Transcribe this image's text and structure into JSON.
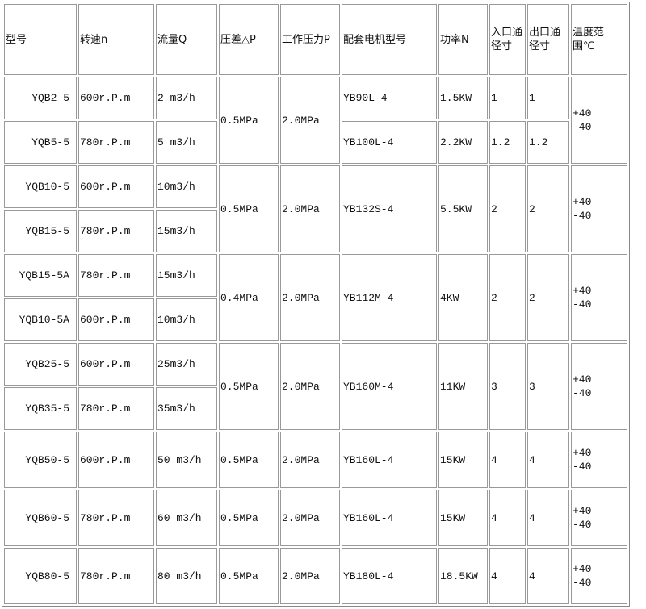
{
  "headers": [
    "型号",
    "转速n",
    "流量Q",
    "压差△P",
    "工作压力P",
    "配套电机型号",
    "功率N",
    "入口通径寸",
    "出口通径寸",
    "温度范围℃"
  ],
  "groups": [
    {
      "pressure_diff": "0.5MPa",
      "work_pressure": "2.0MPa",
      "temp": [
        "+40",
        "-40"
      ],
      "motor_shared": false,
      "rows": [
        {
          "model": "YQB2-5",
          "speed": "600r.P.m",
          "flow": "2 m3/h",
          "motor": "YB90L-4",
          "power": "1.5KW",
          "inlet": "1",
          "outlet": "1"
        },
        {
          "model": "YQB5-5",
          "speed": "780r.P.m",
          "flow": "5 m3/h",
          "motor": "YB100L-4",
          "power": "2.2KW",
          "inlet": "1.2",
          "outlet": "1.2"
        }
      ]
    },
    {
      "pressure_diff": "0.5MPa",
      "work_pressure": "2.0MPa",
      "temp": [
        "+40",
        "-40"
      ],
      "motor_shared": true,
      "motor": "YB132S-4",
      "power": "5.5KW",
      "inlet": "2",
      "outlet": "2",
      "rows": [
        {
          "model": "YQB10-5",
          "speed": "600r.P.m",
          "flow": "10m3/h"
        },
        {
          "model": "YQB15-5",
          "speed": "780r.P.m",
          "flow": "15m3/h"
        }
      ]
    },
    {
      "pressure_diff": "0.4MPa",
      "work_pressure": "2.0MPa",
      "temp": [
        "+40",
        "-40"
      ],
      "motor_shared": true,
      "motor": "YB112M-4",
      "power": "4KW",
      "inlet": "2",
      "outlet": "2",
      "rows": [
        {
          "model": "YQB15-5A",
          "speed": "780r.P.m",
          "flow": "15m3/h"
        },
        {
          "model": "YQB10-5A",
          "speed": "600r.P.m",
          "flow": "10m3/h"
        }
      ]
    },
    {
      "pressure_diff": "0.5MPa",
      "work_pressure": "2.0MPa",
      "temp": [
        "+40",
        "-40"
      ],
      "motor_shared": true,
      "motor": "YB160M-4",
      "power": "11KW",
      "inlet": "3",
      "outlet": "3",
      "rows": [
        {
          "model": "YQB25-5",
          "speed": "600r.P.m",
          "flow": "25m3/h"
        },
        {
          "model": "YQB35-5",
          "speed": "780r.P.m",
          "flow": "35m3/h"
        }
      ]
    },
    {
      "pressure_diff": "0.5MPa",
      "work_pressure": "2.0MPa",
      "temp": [
        "+40",
        "-40"
      ],
      "motor_shared": true,
      "motor": "YB160L-4",
      "power": "15KW",
      "inlet": "4",
      "outlet": "4",
      "rows": [
        {
          "model": "YQB50-5",
          "speed": "600r.P.m",
          "flow": "50 m3/h"
        }
      ]
    },
    {
      "pressure_diff": "0.5MPa",
      "work_pressure": "2.0MPa",
      "temp": [
        "+40",
        "-40"
      ],
      "motor_shared": true,
      "motor": "YB160L-4",
      "power": "15KW",
      "inlet": "4",
      "outlet": "4",
      "rows": [
        {
          "model": "YQB60-5",
          "speed": "780r.P.m",
          "flow": "60 m3/h"
        }
      ]
    },
    {
      "pressure_diff": "0.5MPa",
      "work_pressure": "2.0MPa",
      "temp": [
        "+40",
        "-40"
      ],
      "motor_shared": true,
      "motor": "YB180L-4",
      "power": "18.5KW",
      "inlet": "4",
      "outlet": "4",
      "rows": [
        {
          "model": "YQB80-5",
          "speed": "780r.P.m",
          "flow": "80 m3/h"
        }
      ]
    }
  ]
}
